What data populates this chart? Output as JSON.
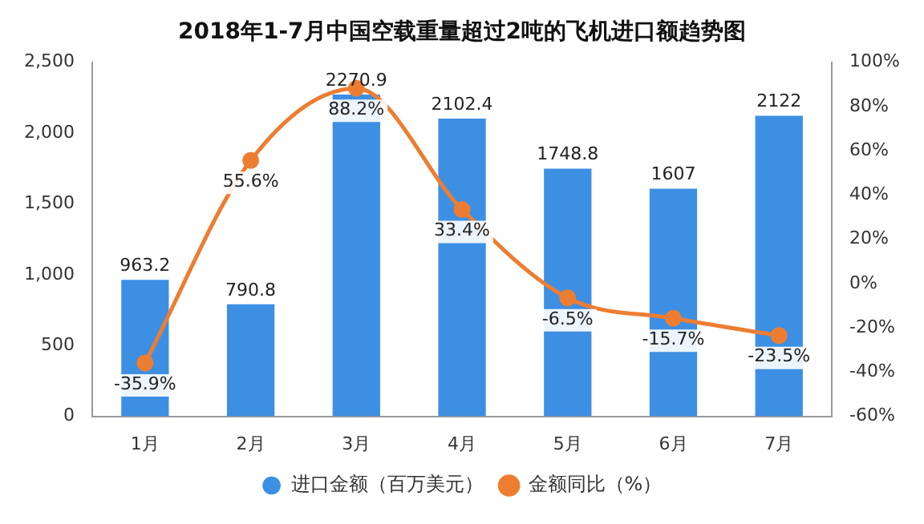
{
  "chart_data": {
    "type": "bar",
    "title": "2018年1-7月中国空载重量超过2吨的飞机进口额趋势图",
    "categories": [
      "1月",
      "2月",
      "3月",
      "4月",
      "5月",
      "6月",
      "7月"
    ],
    "series": [
      {
        "name": "进口金额（百万美元）",
        "color": "#3d8fe3",
        "values": [
          963.2,
          790.8,
          2270.9,
          2102.4,
          1748.8,
          1607,
          2122
        ],
        "value_labels": [
          "963.2",
          "790.8",
          "2270.9",
          "2102.4",
          "1748.8",
          "1607",
          "2122"
        ]
      },
      {
        "name": "金额同比（%）",
        "type": "line",
        "axis": "y2",
        "color": "#ed7d31",
        "marker": "circle",
        "values": [
          -35.9,
          55.6,
          88.2,
          33.4,
          -6.5,
          -15.7,
          -23.5
        ],
        "value_labels": [
          "-35.9%",
          "55.6%",
          "88.2%",
          "33.4%",
          "-6.5%",
          "-15.7%",
          "-23.5%"
        ]
      }
    ],
    "ylim": [
      0,
      2500
    ],
    "yticks": [
      0,
      500,
      {
        "value": 1000,
        "label": "1,000"
      },
      {
        "value": 1500,
        "label": "1,500"
      },
      {
        "value": 2000,
        "label": "2,000"
      },
      {
        "value": 2500,
        "label": "2,500"
      }
    ],
    "y2lim": [
      -60,
      100
    ],
    "y2ticks": [
      {
        "value": -60,
        "label": "-60%"
      },
      {
        "value": -40,
        "label": "-40%"
      },
      {
        "value": -20,
        "label": "-20%"
      },
      {
        "value": 0,
        "label": "0%"
      },
      {
        "value": 20,
        "label": "20%"
      },
      {
        "value": 40,
        "label": "40%"
      },
      {
        "value": 60,
        "label": "60%"
      },
      {
        "value": 80,
        "label": "80%"
      },
      {
        "value": 100,
        "label": "100%"
      }
    ],
    "grid": false,
    "legend": "bottom"
  }
}
